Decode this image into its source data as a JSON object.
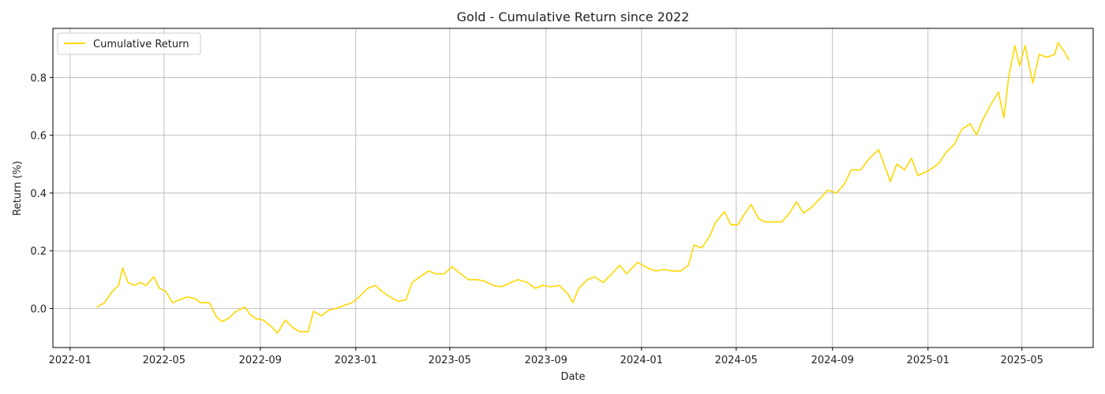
{
  "chart_data": {
    "type": "line",
    "title": "Gold - Cumulative Return since 2022",
    "xlabel": "Date",
    "ylabel": "Return (%)",
    "x_axis_type": "date",
    "xlim": [
      "2021-12-10",
      "2025-07-31"
    ],
    "ylim": [
      -0.135,
      0.97
    ],
    "grid": true,
    "legend_position": "top-left",
    "x_ticks": [
      "2022-01",
      "2022-05",
      "2022-09",
      "2023-01",
      "2023-05",
      "2023-09",
      "2024-01",
      "2024-05",
      "2024-09",
      "2025-01",
      "2025-05"
    ],
    "y_ticks": [
      "0.0",
      "0.2",
      "0.4",
      "0.6",
      "0.8"
    ],
    "series": [
      {
        "name": "Cumulative Return",
        "color": "#FFD700",
        "points": [
          [
            "2022-02-04",
            0.005
          ],
          [
            "2022-02-14",
            0.02
          ],
          [
            "2022-02-24",
            0.06
          ],
          [
            "2022-03-04",
            0.08
          ],
          [
            "2022-03-09",
            0.14
          ],
          [
            "2022-03-16",
            0.09
          ],
          [
            "2022-03-24",
            0.08
          ],
          [
            "2022-04-01",
            0.09
          ],
          [
            "2022-04-08",
            0.08
          ],
          [
            "2022-04-18",
            0.11
          ],
          [
            "2022-04-25",
            0.07
          ],
          [
            "2022-05-03",
            0.06
          ],
          [
            "2022-05-12",
            0.02
          ],
          [
            "2022-05-20",
            0.03
          ],
          [
            "2022-05-31",
            0.04
          ],
          [
            "2022-06-09",
            0.035
          ],
          [
            "2022-06-17",
            0.02
          ],
          [
            "2022-06-28",
            0.02
          ],
          [
            "2022-07-07",
            -0.03
          ],
          [
            "2022-07-14",
            -0.045
          ],
          [
            "2022-07-22",
            -0.035
          ],
          [
            "2022-08-01",
            -0.01
          ],
          [
            "2022-08-12",
            0.005
          ],
          [
            "2022-08-19",
            -0.02
          ],
          [
            "2022-08-26",
            -0.035
          ],
          [
            "2022-09-05",
            -0.04
          ],
          [
            "2022-09-14",
            -0.06
          ],
          [
            "2022-09-23",
            -0.085
          ],
          [
            "2022-10-03",
            -0.04
          ],
          [
            "2022-10-12",
            -0.065
          ],
          [
            "2022-10-21",
            -0.08
          ],
          [
            "2022-11-01",
            -0.08
          ],
          [
            "2022-11-08",
            -0.01
          ],
          [
            "2022-11-18",
            -0.025
          ],
          [
            "2022-11-28",
            -0.005
          ],
          [
            "2022-12-07",
            0.0
          ],
          [
            "2022-12-16",
            0.01
          ],
          [
            "2022-12-27",
            0.02
          ],
          [
            "2023-01-05",
            0.04
          ],
          [
            "2023-01-16",
            0.07
          ],
          [
            "2023-01-26",
            0.08
          ],
          [
            "2023-02-03",
            0.06
          ],
          [
            "2023-02-14",
            0.04
          ],
          [
            "2023-02-24",
            0.025
          ],
          [
            "2023-03-06",
            0.03
          ],
          [
            "2023-03-14",
            0.09
          ],
          [
            "2023-03-24",
            0.11
          ],
          [
            "2023-04-04",
            0.13
          ],
          [
            "2023-04-13",
            0.12
          ],
          [
            "2023-04-24",
            0.12
          ],
          [
            "2023-05-04",
            0.145
          ],
          [
            "2023-05-15",
            0.12
          ],
          [
            "2023-05-25",
            0.1
          ],
          [
            "2023-06-05",
            0.1
          ],
          [
            "2023-06-14",
            0.095
          ],
          [
            "2023-06-26",
            0.08
          ],
          [
            "2023-07-06",
            0.075
          ],
          [
            "2023-07-18",
            0.09
          ],
          [
            "2023-07-27",
            0.1
          ],
          [
            "2023-08-08",
            0.09
          ],
          [
            "2023-08-18",
            0.07
          ],
          [
            "2023-08-28",
            0.08
          ],
          [
            "2023-09-07",
            0.075
          ],
          [
            "2023-09-18",
            0.08
          ],
          [
            "2023-09-29",
            0.05
          ],
          [
            "2023-10-05",
            0.02
          ],
          [
            "2023-10-13",
            0.07
          ],
          [
            "2023-10-24",
            0.1
          ],
          [
            "2023-11-02",
            0.11
          ],
          [
            "2023-11-13",
            0.09
          ],
          [
            "2023-11-24",
            0.12
          ],
          [
            "2023-12-04",
            0.15
          ],
          [
            "2023-12-13",
            0.12
          ],
          [
            "2023-12-27",
            0.16
          ],
          [
            "2024-01-09",
            0.14
          ],
          [
            "2024-01-19",
            0.13
          ],
          [
            "2024-01-30",
            0.135
          ],
          [
            "2024-02-09",
            0.13
          ],
          [
            "2024-02-20",
            0.13
          ],
          [
            "2024-03-01",
            0.15
          ],
          [
            "2024-03-08",
            0.22
          ],
          [
            "2024-03-18",
            0.21
          ],
          [
            "2024-03-28",
            0.25
          ],
          [
            "2024-04-05",
            0.3
          ],
          [
            "2024-04-16",
            0.335
          ],
          [
            "2024-04-24",
            0.29
          ],
          [
            "2024-05-03",
            0.29
          ],
          [
            "2024-05-10",
            0.32
          ],
          [
            "2024-05-20",
            0.36
          ],
          [
            "2024-05-30",
            0.31
          ],
          [
            "2024-06-07",
            0.3
          ],
          [
            "2024-06-18",
            0.3
          ],
          [
            "2024-06-28",
            0.3
          ],
          [
            "2024-07-08",
            0.33
          ],
          [
            "2024-07-17",
            0.37
          ],
          [
            "2024-07-26",
            0.33
          ],
          [
            "2024-08-05",
            0.35
          ],
          [
            "2024-08-16",
            0.38
          ],
          [
            "2024-08-26",
            0.41
          ],
          [
            "2024-09-06",
            0.4
          ],
          [
            "2024-09-16",
            0.43
          ],
          [
            "2024-09-25",
            0.48
          ],
          [
            "2024-10-07",
            0.48
          ],
          [
            "2024-10-18",
            0.52
          ],
          [
            "2024-10-30",
            0.55
          ],
          [
            "2024-11-07",
            0.49
          ],
          [
            "2024-11-14",
            0.44
          ],
          [
            "2024-11-22",
            0.5
          ],
          [
            "2024-12-02",
            0.48
          ],
          [
            "2024-12-11",
            0.52
          ],
          [
            "2024-12-19",
            0.46
          ],
          [
            "2025-01-03",
            0.48
          ],
          [
            "2025-01-14",
            0.5
          ],
          [
            "2025-01-24",
            0.54
          ],
          [
            "2025-02-04",
            0.57
          ],
          [
            "2025-02-13",
            0.62
          ],
          [
            "2025-02-24",
            0.64
          ],
          [
            "2025-03-04",
            0.6
          ],
          [
            "2025-03-13",
            0.66
          ],
          [
            "2025-03-21",
            0.7
          ],
          [
            "2025-04-01",
            0.75
          ],
          [
            "2025-04-08",
            0.66
          ],
          [
            "2025-04-14",
            0.8
          ],
          [
            "2025-04-22",
            0.91
          ],
          [
            "2025-04-28",
            0.84
          ],
          [
            "2025-05-05",
            0.91
          ],
          [
            "2025-05-15",
            0.78
          ],
          [
            "2025-05-23",
            0.88
          ],
          [
            "2025-06-02",
            0.87
          ],
          [
            "2025-06-12",
            0.88
          ],
          [
            "2025-06-16",
            0.92
          ],
          [
            "2025-06-24",
            0.89
          ],
          [
            "2025-06-30",
            0.86
          ]
        ]
      }
    ]
  }
}
